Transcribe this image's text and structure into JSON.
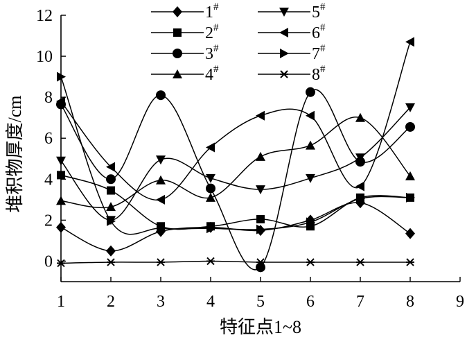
{
  "chart_data": {
    "type": "line",
    "title": "",
    "xlabel": "特征点1~8",
    "ylabel": "堆积物厚度/cm",
    "xlim": [
      1,
      9
    ],
    "ylim": [
      -1,
      12
    ],
    "xticks": [
      1,
      2,
      3,
      4,
      5,
      6,
      7,
      8,
      9
    ],
    "yticks": [
      0,
      2,
      4,
      6,
      8,
      10,
      12
    ],
    "x": [
      1,
      2,
      3,
      4,
      5,
      6,
      7,
      8
    ],
    "grid": false,
    "legend_position": "top",
    "line_color": "#000000",
    "smooth": true,
    "series": [
      {
        "name": "1",
        "name_sup": "#",
        "marker": "diamond",
        "values": [
          1.65,
          0.5,
          1.45,
          1.65,
          1.5,
          2.0,
          2.85,
          1.35
        ]
      },
      {
        "name": "2",
        "name_sup": "#",
        "marker": "square",
        "values": [
          4.2,
          3.45,
          1.7,
          1.7,
          2.05,
          1.7,
          3.1,
          3.1
        ]
      },
      {
        "name": "3",
        "name_sup": "#",
        "marker": "circle",
        "values": [
          7.65,
          4.0,
          8.1,
          3.55,
          -0.3,
          8.25,
          4.85,
          6.55
        ]
      },
      {
        "name": "4",
        "name_sup": "#",
        "marker": "triangle-up",
        "values": [
          2.95,
          2.65,
          3.95,
          3.1,
          5.1,
          5.65,
          7.0,
          4.15
        ]
      },
      {
        "name": "5",
        "name_sup": "#",
        "marker": "triangle-down",
        "values": [
          4.9,
          2.0,
          4.95,
          4.05,
          3.5,
          4.05,
          5.05,
          7.5
        ]
      },
      {
        "name": "6",
        "name_sup": "#",
        "marker": "triangle-left",
        "values": [
          7.8,
          4.6,
          3.0,
          5.55,
          7.1,
          7.1,
          3.65,
          10.7
        ]
      },
      {
        "name": "7",
        "name_sup": "#",
        "marker": "triangle-right",
        "values": [
          9.0,
          1.95,
          1.6,
          1.6,
          1.55,
          1.9,
          3.05,
          3.1
        ]
      },
      {
        "name": "8",
        "name_sup": "#",
        "marker": "star",
        "values": [
          -0.1,
          -0.05,
          -0.05,
          0.0,
          -0.05,
          -0.05,
          -0.05,
          -0.05
        ]
      }
    ]
  }
}
